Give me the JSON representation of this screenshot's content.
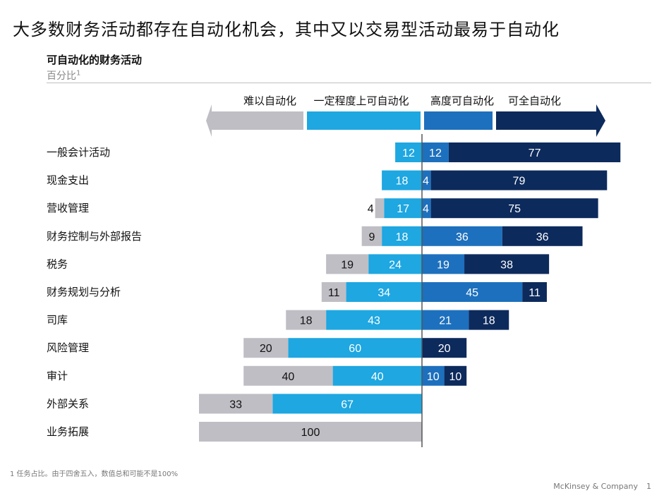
{
  "title": "大多数财务活动都存在自动化机会，其中又以交易型活动最易于自动化",
  "subtitle": "可自动化的财务活动",
  "unit_label": "百分比",
  "unit_sup": "1",
  "footnote": "1 任务占比。由于四舍五入，数值总和可能不是100%",
  "footer": {
    "brand": "McKinsey & Company",
    "page": "1"
  },
  "colors": {
    "gray": "#bfbec4",
    "light_blue": "#1ea7e1",
    "mid_blue": "#1d70bd",
    "dark_navy": "#0d2a5c"
  },
  "chart_data": {
    "type": "bar",
    "subtype": "diverging-stacked-horizontal",
    "title": "可自动化的财务活动",
    "ylabel": "百分比",
    "xlim": [
      -100,
      100
    ],
    "legend": [
      "难以自动化",
      "一定程度上可自动化",
      "高度可自动化",
      "可全自动化"
    ],
    "categories": [
      "一般会计活动",
      "现金支出",
      "营收管理",
      "财务控制与外部报告",
      "税务",
      "财务规划与分析",
      "司库",
      "风险管理",
      "审计",
      "外部关系",
      "业务拓展"
    ],
    "series": [
      {
        "name": "难以自动化",
        "color": "#bfbec4",
        "direction": "left",
        "values": [
          0,
          0,
          4,
          9,
          19,
          11,
          18,
          20,
          40,
          33,
          100
        ]
      },
      {
        "name": "一定程度上可自动化",
        "color": "#1ea7e1",
        "direction": "left",
        "values": [
          12,
          18,
          17,
          18,
          24,
          34,
          43,
          60,
          40,
          67,
          0
        ]
      },
      {
        "name": "高度可自动化",
        "color": "#1d70bd",
        "direction": "right",
        "values": [
          12,
          4,
          4,
          36,
          19,
          45,
          21,
          0,
          10,
          0,
          0
        ]
      },
      {
        "name": "可全自动化",
        "color": "#0d2a5c",
        "direction": "right",
        "values": [
          77,
          79,
          75,
          36,
          38,
          11,
          18,
          20,
          10,
          0,
          0
        ]
      }
    ]
  }
}
